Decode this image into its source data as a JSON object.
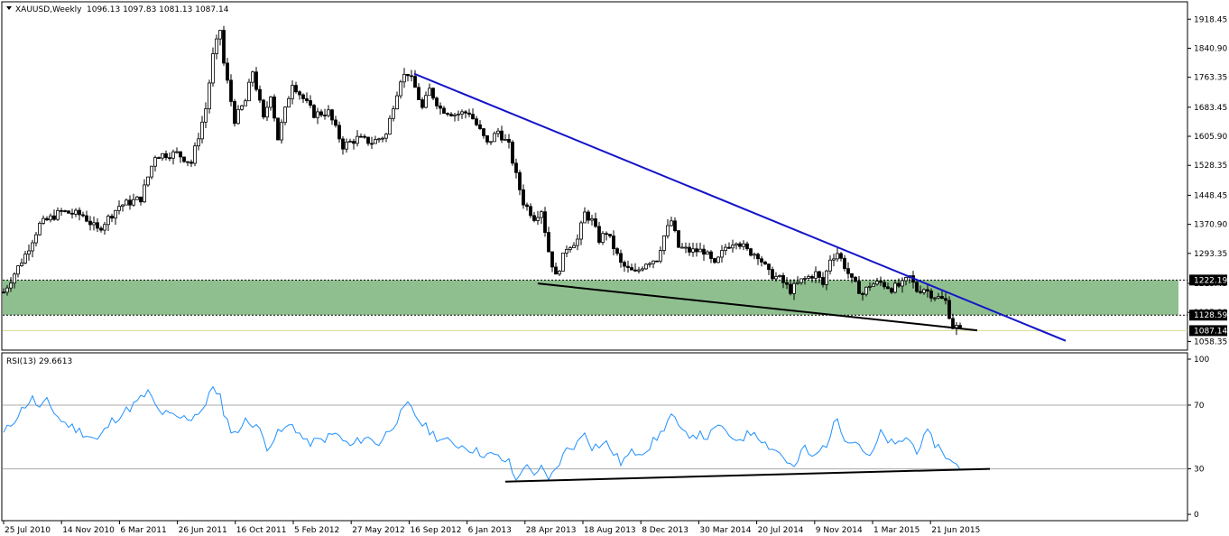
{
  "header": {
    "symbol": "XAUUSD,Weekly",
    "ohlc": "1096.13 1097.83 1081.13 1087.14"
  },
  "rsi_header": "RSI(13) 29.6613",
  "colors": {
    "up": "#000000",
    "down": "#000000",
    "grid": "#c8c8c8",
    "zone": "#8fbf8f",
    "resistance": "#1414c8",
    "support": "#000000",
    "rsi": "#1e90ff",
    "level": "#a9a9a9"
  },
  "chart_data": [
    {
      "type": "candlestick",
      "timeframe": "Weekly",
      "ylim": [
        1040,
        1960
      ],
      "y_ticks": [
        "1918.45",
        "1840.90",
        "1763.35",
        "1683.45",
        "1605.90",
        "1528.35",
        "1448.45",
        "1370.90",
        "1293.35",
        "1213.45",
        "1135.90",
        "1058.35"
      ],
      "x_labels": [
        "25 Jul 2010",
        "14 Nov 2010",
        "6 Mar 2011",
        "26 Jun 2011",
        "16 Oct 2011",
        "5 Feb 2012",
        "27 May 2012",
        "16 Sep 2012",
        "6 Jan 2013",
        "28 Apr 2013",
        "18 Aug 2013",
        "8 Dec 2013",
        "30 Mar 2014",
        "20 Jul 2014",
        "9 Nov 2014",
        "1 Mar 2015",
        "21 Jun 2015"
      ],
      "anchors": [
        [
          0,
          1190
        ],
        [
          6,
          1290
        ],
        [
          10,
          1370
        ],
        [
          16,
          1405
        ],
        [
          22,
          1395
        ],
        [
          26,
          1355
        ],
        [
          32,
          1420
        ],
        [
          38,
          1440
        ],
        [
          42,
          1555
        ],
        [
          48,
          1560
        ],
        [
          52,
          1535
        ],
        [
          56,
          1680
        ],
        [
          58,
          1820
        ],
        [
          60,
          1890
        ],
        [
          61,
          1800
        ],
        [
          64,
          1650
        ],
        [
          67,
          1700
        ],
        [
          69,
          1780
        ],
        [
          72,
          1650
        ],
        [
          74,
          1720
        ],
        [
          76,
          1600
        ],
        [
          80,
          1750
        ],
        [
          82,
          1720
        ],
        [
          86,
          1665
        ],
        [
          90,
          1670
        ],
        [
          94,
          1580
        ],
        [
          98,
          1600
        ],
        [
          102,
          1590
        ],
        [
          106,
          1610
        ],
        [
          108,
          1690
        ],
        [
          110,
          1760
        ],
        [
          112,
          1775
        ],
        [
          114,
          1735
        ],
        [
          116,
          1680
        ],
        [
          118,
          1730
        ],
        [
          121,
          1680
        ],
        [
          125,
          1665
        ],
        [
          129,
          1670
        ],
        [
          132,
          1620
        ],
        [
          134,
          1585
        ],
        [
          137,
          1620
        ],
        [
          140,
          1580
        ],
        [
          142,
          1500
        ],
        [
          144,
          1430
        ],
        [
          147,
          1390
        ],
        [
          149,
          1410
        ],
        [
          151,
          1300
        ],
        [
          153,
          1230
        ],
        [
          156,
          1310
        ],
        [
          159,
          1330
        ],
        [
          161,
          1400
        ],
        [
          163,
          1380
        ],
        [
          165,
          1330
        ],
        [
          167,
          1350
        ],
        [
          169,
          1310
        ],
        [
          171,
          1265
        ],
        [
          173,
          1250
        ],
        [
          175,
          1240
        ],
        [
          178,
          1270
        ],
        [
          181,
          1280
        ],
        [
          183,
          1340
        ],
        [
          185,
          1380
        ],
        [
          187,
          1310
        ],
        [
          190,
          1300
        ],
        [
          194,
          1300
        ],
        [
          197,
          1260
        ],
        [
          200,
          1310
        ],
        [
          203,
          1330
        ],
        [
          206,
          1300
        ],
        [
          209,
          1290
        ],
        [
          212,
          1240
        ],
        [
          215,
          1225
        ],
        [
          218,
          1195
        ],
        [
          221,
          1220
        ],
        [
          223,
          1230
        ],
        [
          225,
          1240
        ],
        [
          227,
          1210
        ],
        [
          229,
          1280
        ],
        [
          231,
          1295
        ],
        [
          233,
          1260
        ],
        [
          235,
          1220
        ],
        [
          238,
          1185
        ],
        [
          240,
          1210
        ],
        [
          243,
          1215
        ],
        [
          246,
          1200
        ],
        [
          249,
          1210
        ],
        [
          251,
          1230
        ],
        [
          253,
          1195
        ],
        [
          255,
          1200
        ],
        [
          257,
          1185
        ],
        [
          259,
          1175
        ],
        [
          261,
          1165
        ],
        [
          262,
          1130
        ],
        [
          263,
          1098
        ],
        [
          264,
          1096
        ],
        [
          265,
          1087
        ]
      ],
      "resistance_zone": {
        "upper": 1222.19,
        "lower": 1128.59
      },
      "price_labels": [
        "1222.19",
        "1128.59",
        "1087.14"
      ],
      "current_price": 1087.14,
      "resistance_line": {
        "start": [
          "16 Sep 2012",
          1773
        ],
        "end": [
          "Oct 2015",
          1060
        ]
      },
      "support_line": {
        "start": [
          "28 Apr 2013",
          1213
        ],
        "end": [
          "Jul 2015",
          1088
        ]
      }
    },
    {
      "type": "line",
      "name": "RSI(13)",
      "ylim": [
        0,
        100
      ],
      "y_ticks": [
        "100",
        "70",
        "30",
        "0"
      ],
      "levels": [
        70,
        30
      ],
      "last_value": 29.6613,
      "anchors": [
        [
          0,
          52
        ],
        [
          6,
          70
        ],
        [
          8,
          74
        ],
        [
          10,
          68
        ],
        [
          12,
          72
        ],
        [
          16,
          60
        ],
        [
          20,
          55
        ],
        [
          26,
          48
        ],
        [
          30,
          60
        ],
        [
          36,
          70
        ],
        [
          40,
          78
        ],
        [
          43,
          66
        ],
        [
          48,
          62
        ],
        [
          52,
          62
        ],
        [
          56,
          70
        ],
        [
          58,
          82
        ],
        [
          60,
          76
        ],
        [
          61,
          62
        ],
        [
          64,
          52
        ],
        [
          67,
          60
        ],
        [
          70,
          58
        ],
        [
          73,
          44
        ],
        [
          76,
          52
        ],
        [
          80,
          58
        ],
        [
          84,
          46
        ],
        [
          88,
          48
        ],
        [
          92,
          52
        ],
        [
          96,
          44
        ],
        [
          100,
          50
        ],
        [
          104,
          46
        ],
        [
          108,
          58
        ],
        [
          112,
          70
        ],
        [
          116,
          58
        ],
        [
          120,
          50
        ],
        [
          124,
          46
        ],
        [
          128,
          44
        ],
        [
          132,
          40
        ],
        [
          136,
          38
        ],
        [
          140,
          34
        ],
        [
          142,
          22
        ],
        [
          144,
          32
        ],
        [
          147,
          28
        ],
        [
          149,
          30
        ],
        [
          151,
          22
        ],
        [
          153,
          30
        ],
        [
          156,
          42
        ],
        [
          159,
          46
        ],
        [
          161,
          54
        ],
        [
          163,
          44
        ],
        [
          167,
          46
        ],
        [
          171,
          34
        ],
        [
          174,
          40
        ],
        [
          178,
          42
        ],
        [
          182,
          52
        ],
        [
          185,
          64
        ],
        [
          188,
          52
        ],
        [
          191,
          52
        ],
        [
          195,
          50
        ],
        [
          199,
          58
        ],
        [
          201,
          48
        ],
        [
          205,
          50
        ],
        [
          208,
          54
        ],
        [
          211,
          46
        ],
        [
          215,
          40
        ],
        [
          219,
          30
        ],
        [
          222,
          44
        ],
        [
          224,
          36
        ],
        [
          228,
          46
        ],
        [
          231,
          62
        ],
        [
          233,
          50
        ],
        [
          237,
          46
        ],
        [
          240,
          36
        ],
        [
          243,
          52
        ],
        [
          247,
          44
        ],
        [
          250,
          50
        ],
        [
          253,
          42
        ],
        [
          256,
          52
        ],
        [
          258,
          46
        ],
        [
          260,
          42
        ],
        [
          262,
          35
        ],
        [
          265,
          29.66
        ]
      ],
      "trend_line": {
        "start": [
          "Mar 2013",
          22
        ],
        "end": [
          "Sep 2015",
          30
        ]
      }
    }
  ]
}
